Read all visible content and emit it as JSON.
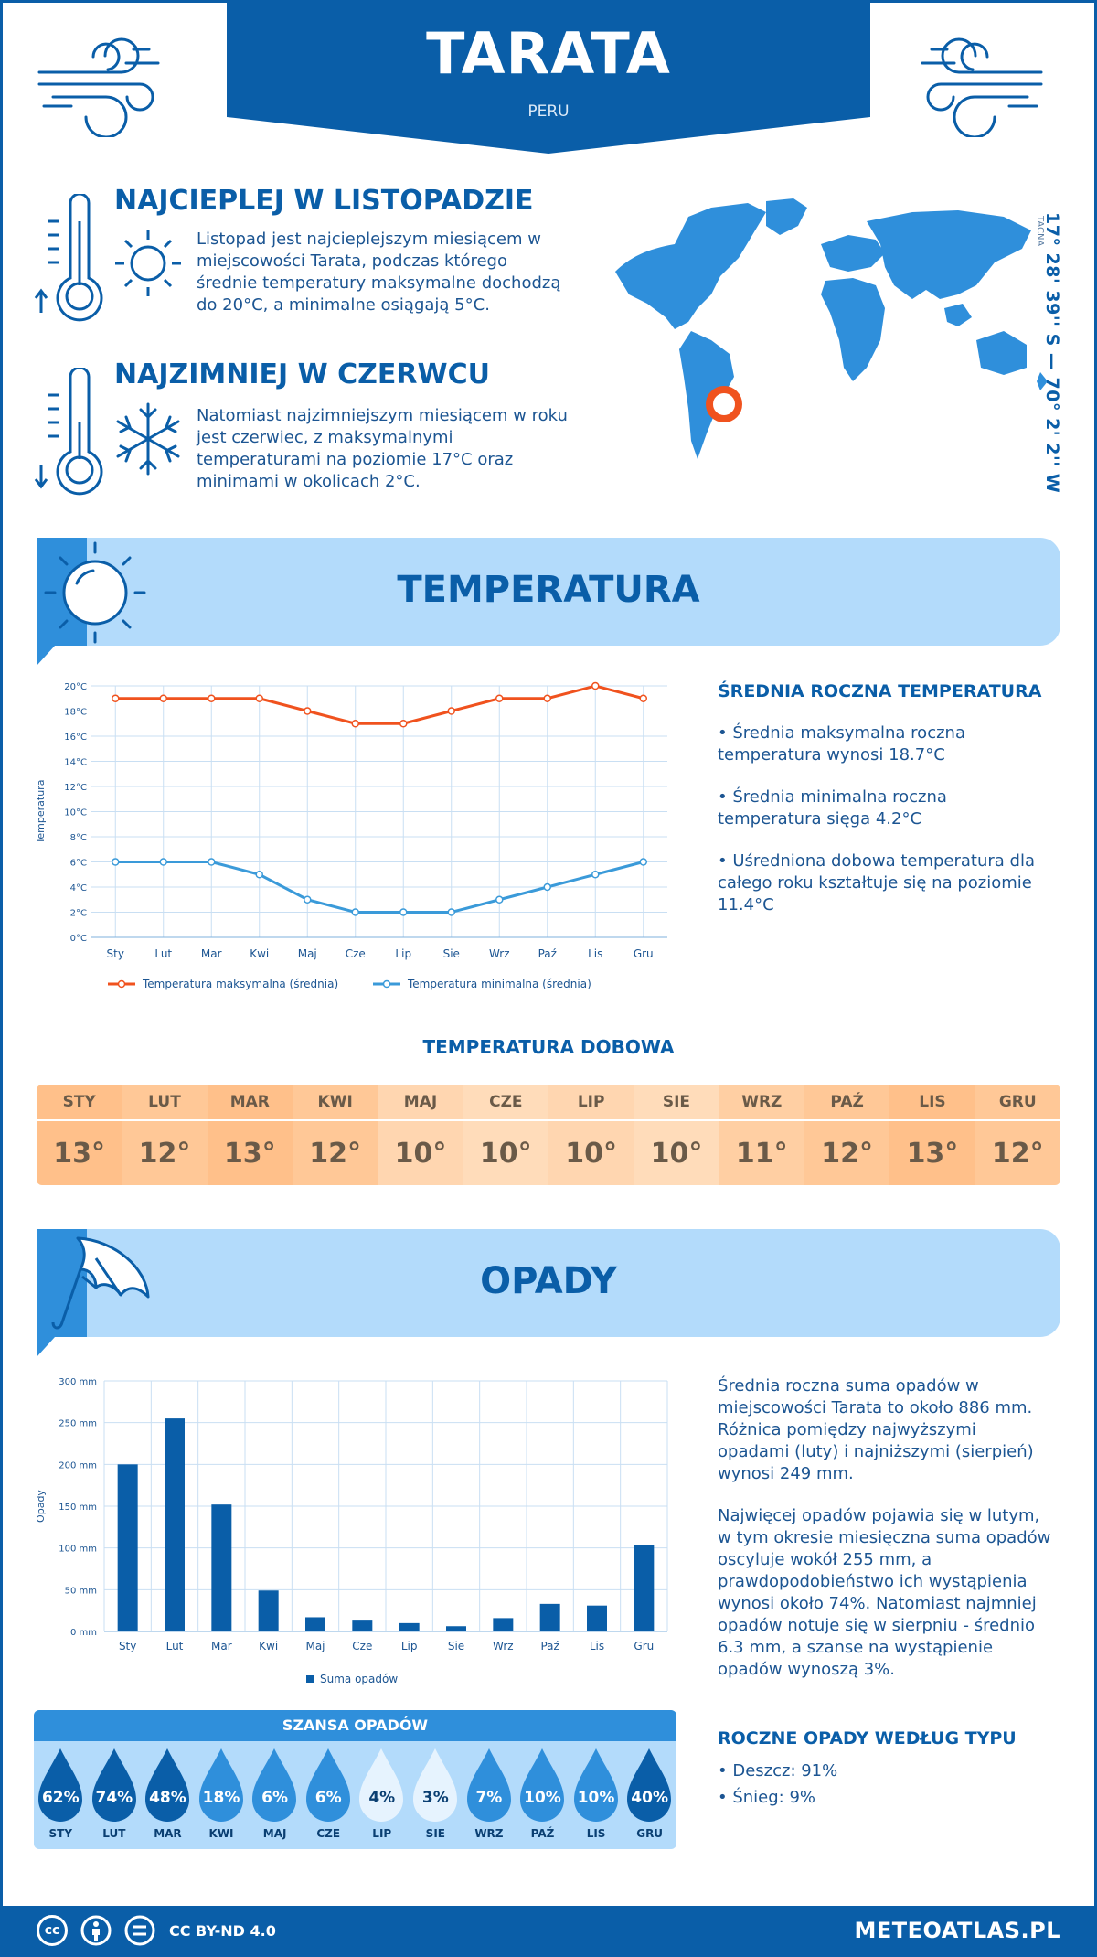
{
  "header": {
    "city": "TARATA",
    "country": "PERU"
  },
  "facts": {
    "warm_title": "NAJCIEPLEJ W LISTOPADZIE",
    "warm_text": "Listopad jest najcieplejszym miesiącem w miejscowości Tarata, podczas którego średnie temperatury maksymalne dochodzą do 20°C, a minimalne osiągają 5°C.",
    "cold_title": "NAJZIMNIEJ W CZERWCU",
    "cold_text": "Natomiast najzimniejszym miesiącem w roku jest czerwiec, z maksymalnymi temperaturami na poziomie 17°C oraz minimami w okolicach 2°C."
  },
  "location": {
    "coords": "17° 28' 39'' S — 70° 2' 2'' W",
    "region": "TACNA"
  },
  "temperature_section": {
    "title": "TEMPERATURA",
    "side_title": "ŚREDNIA ROCZNA TEMPERATURA",
    "bullets": [
      "• Średnia maksymalna roczna temperatura wynosi 18.7°C",
      "• Średnia minimalna roczna temperatura sięga 4.2°C",
      "• Uśredniona dobowa temperatura dla całego roku kształtuje się na poziomie 11.4°C"
    ],
    "daily_title": "TEMPERATURA DOBOWA",
    "daily": [
      {
        "month": "STY",
        "value": "13°",
        "color": "#ffc08a"
      },
      {
        "month": "LUT",
        "value": "12°",
        "color": "#ffc897"
      },
      {
        "month": "MAR",
        "value": "13°",
        "color": "#ffc08a"
      },
      {
        "month": "KWI",
        "value": "12°",
        "color": "#ffc897"
      },
      {
        "month": "MAJ",
        "value": "10°",
        "color": "#ffd6b0"
      },
      {
        "month": "CZE",
        "value": "10°",
        "color": "#ffdcba"
      },
      {
        "month": "LIP",
        "value": "10°",
        "color": "#ffd6b0"
      },
      {
        "month": "SIE",
        "value": "10°",
        "color": "#ffdcba"
      },
      {
        "month": "WRZ",
        "value": "11°",
        "color": "#ffcfa3"
      },
      {
        "month": "PAŹ",
        "value": "12°",
        "color": "#ffc897"
      },
      {
        "month": "LIS",
        "value": "13°",
        "color": "#ffc08a"
      },
      {
        "month": "GRU",
        "value": "12°",
        "color": "#ffc897"
      }
    ]
  },
  "temp_chart": {
    "chart_data": {
      "type": "line",
      "categories": [
        "Sty",
        "Lut",
        "Mar",
        "Kwi",
        "Maj",
        "Cze",
        "Lip",
        "Sie",
        "Wrz",
        "Paź",
        "Lis",
        "Gru"
      ],
      "series": [
        {
          "name": "Temperatura maksymalna (średnia)",
          "values": [
            19,
            19,
            19,
            19,
            18,
            17,
            17,
            18,
            19,
            19,
            20,
            19
          ],
          "color": "#f0521e"
        },
        {
          "name": "Temperatura minimalna (średnia)",
          "values": [
            6,
            6,
            6,
            5,
            3,
            2,
            2,
            2,
            3,
            4,
            5,
            6
          ],
          "color": "#3a9ad9"
        }
      ],
      "ylabel": "Temperatura",
      "ylim": [
        0,
        20
      ],
      "yticks": [
        "0°C",
        "2°C",
        "4°C",
        "6°C",
        "8°C",
        "10°C",
        "12°C",
        "14°C",
        "16°C",
        "18°C",
        "20°C"
      ],
      "grid": true,
      "legend": "bottom"
    }
  },
  "precip_section": {
    "title": "OPADY",
    "text1": "Średnia roczna suma opadów w miejscowości Tarata to około 886 mm. Różnica pomiędzy najwyższymi opadami (luty) i najniższymi (sierpień) wynosi 249 mm.",
    "text2": "Najwięcej opadów pojawia się w lutym, w tym okresie miesięczna suma opadów oscyluje wokół 255 mm, a prawdopodobieństwo ich wystąpienia wynosi około 74%. Natomiast najmniej opadów notuje się w sierpniu - średnio 6.3 mm, a szanse na wystąpienie opadów wynoszą 3%.",
    "type_title": "ROCZNE OPADY WEDŁUG TYPU",
    "types": [
      "• Deszcz: 91%",
      "• Śnieg: 9%"
    ],
    "chance_title": "SZANSA OPADÓW",
    "chances": [
      {
        "month": "STY",
        "pct": "62%",
        "fill": "#0a5ea8",
        "text": "#ffffff"
      },
      {
        "month": "LUT",
        "pct": "74%",
        "fill": "#0a5ea8",
        "text": "#ffffff"
      },
      {
        "month": "MAR",
        "pct": "48%",
        "fill": "#0a5ea8",
        "text": "#ffffff"
      },
      {
        "month": "KWI",
        "pct": "18%",
        "fill": "#2f8fdb",
        "text": "#ffffff"
      },
      {
        "month": "MAJ",
        "pct": "6%",
        "fill": "#2f8fdb",
        "text": "#ffffff"
      },
      {
        "month": "CZE",
        "pct": "6%",
        "fill": "#2f8fdb",
        "text": "#ffffff"
      },
      {
        "month": "LIP",
        "pct": "4%",
        "fill": "#e6f3fe",
        "text": "#0a3f72"
      },
      {
        "month": "SIE",
        "pct": "3%",
        "fill": "#e6f3fe",
        "text": "#0a3f72"
      },
      {
        "month": "WRZ",
        "pct": "7%",
        "fill": "#2f8fdb",
        "text": "#ffffff"
      },
      {
        "month": "PAŹ",
        "pct": "10%",
        "fill": "#2f8fdb",
        "text": "#ffffff"
      },
      {
        "month": "LIS",
        "pct": "10%",
        "fill": "#2f8fdb",
        "text": "#ffffff"
      },
      {
        "month": "GRU",
        "pct": "40%",
        "fill": "#0a5ea8",
        "text": "#ffffff"
      }
    ]
  },
  "precip_chart": {
    "chart_data": {
      "type": "bar",
      "categories": [
        "Sty",
        "Lut",
        "Mar",
        "Kwi",
        "Maj",
        "Cze",
        "Lip",
        "Sie",
        "Wrz",
        "Paź",
        "Lis",
        "Gru"
      ],
      "series": [
        {
          "name": "Suma opadów",
          "values": [
            200,
            255,
            152,
            49,
            17,
            13,
            10,
            6.3,
            16,
            33,
            31,
            104
          ],
          "color": "#0a5ea8"
        }
      ],
      "ylabel": "Opady",
      "ylim": [
        0,
        300
      ],
      "yticks": [
        "0 mm",
        "50 mm",
        "100 mm",
        "150 mm",
        "200 mm",
        "250 mm",
        "300 mm"
      ],
      "grid": true,
      "legend": "bottom"
    }
  },
  "footer": {
    "license": "CC BY-ND 4.0",
    "site": "METEOATLAS.PL"
  }
}
